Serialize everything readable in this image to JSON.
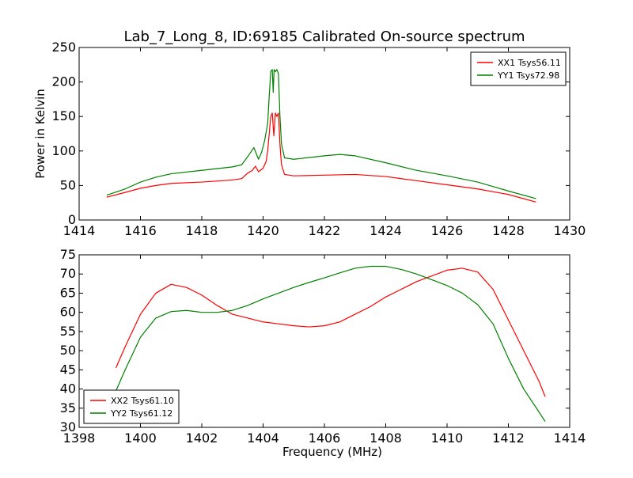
{
  "figure": {
    "title": "Lab_7_Long_8, ID:69185 Calibrated On-source spectrum"
  },
  "chart_data": [
    {
      "type": "line",
      "title": "Lab_7_Long_8, ID:69185 Calibrated On-source spectrum",
      "xlabel": "",
      "ylabel": "Power in Kelvin",
      "xlim": [
        1414,
        1430
      ],
      "ylim": [
        0,
        250
      ],
      "xticks": [
        "1414",
        "1416",
        "1418",
        "1420",
        "1422",
        "1424",
        "1426",
        "1428",
        "1430"
      ],
      "yticks": [
        "0",
        "50",
        "100",
        "150",
        "200",
        "250"
      ],
      "grid": false,
      "legend_position": "top-right",
      "series": [
        {
          "name": "XX1 Tsys56.11",
          "color": "#ff0000",
          "x": [
            1414.9,
            1415.5,
            1416.0,
            1416.5,
            1417.0,
            1418.0,
            1419.0,
            1419.3,
            1419.5,
            1419.65,
            1419.75,
            1419.85,
            1420.0,
            1420.1,
            1420.15,
            1420.2,
            1420.25,
            1420.3,
            1420.35,
            1420.4,
            1420.45,
            1420.5,
            1420.55,
            1420.6,
            1420.7,
            1421.0,
            1422.0,
            1423.0,
            1424.0,
            1425.0,
            1426.0,
            1427.0,
            1428.0,
            1428.9
          ],
          "y": [
            33,
            40,
            46,
            50,
            53,
            55,
            58,
            60,
            68,
            72,
            78,
            70,
            75,
            85,
            100,
            125,
            150,
            155,
            122,
            155,
            150,
            155,
            110,
            80,
            66,
            64,
            65,
            66,
            63,
            57,
            51,
            45,
            37,
            26
          ]
        },
        {
          "name": "YY1 Tsys72.98",
          "color": "#008000",
          "x": [
            1414.9,
            1415.5,
            1416.0,
            1416.5,
            1417.0,
            1418.0,
            1419.0,
            1419.3,
            1419.5,
            1419.7,
            1419.85,
            1419.95,
            1420.05,
            1420.15,
            1420.2,
            1420.25,
            1420.3,
            1420.33,
            1420.36,
            1420.4,
            1420.45,
            1420.5,
            1420.55,
            1420.6,
            1420.7,
            1421.0,
            1422.0,
            1422.5,
            1423.0,
            1424.0,
            1425.0,
            1426.0,
            1427.0,
            1428.0,
            1428.9
          ],
          "y": [
            36,
            45,
            55,
            62,
            67,
            72,
            77,
            80,
            92,
            105,
            88,
            98,
            115,
            140,
            180,
            215,
            218,
            185,
            218,
            215,
            218,
            212,
            150,
            110,
            90,
            88,
            93,
            95,
            93,
            83,
            72,
            64,
            55,
            42,
            31
          ]
        }
      ]
    },
    {
      "type": "line",
      "title": "",
      "xlabel": "Frequency (MHz)",
      "ylabel": "",
      "xlim": [
        1398,
        1414
      ],
      "ylim": [
        30,
        75
      ],
      "xticks": [
        "1398",
        "1400",
        "1402",
        "1404",
        "1406",
        "1408",
        "1410",
        "1412",
        "1414"
      ],
      "yticks": [
        "30",
        "35",
        "40",
        "45",
        "50",
        "55",
        "60",
        "65",
        "70",
        "75"
      ],
      "grid": false,
      "legend_position": "bottom-left",
      "series": [
        {
          "name": "XX2 Tsys61.10",
          "color": "#ff0000",
          "x": [
            1399.2,
            1399.5,
            1400.0,
            1400.5,
            1401.0,
            1401.5,
            1402.0,
            1402.5,
            1403.0,
            1403.5,
            1404.0,
            1404.5,
            1405.0,
            1405.5,
            1406.0,
            1406.5,
            1407.0,
            1407.5,
            1408.0,
            1408.5,
            1409.0,
            1409.5,
            1410.0,
            1410.5,
            1411.0,
            1411.5,
            1412.0,
            1412.5,
            1413.0,
            1413.2
          ],
          "y": [
            45.5,
            51,
            59.5,
            65,
            67.3,
            66.5,
            64.5,
            61.8,
            59.5,
            58.5,
            57.5,
            57,
            56.5,
            56.2,
            56.5,
            57.5,
            59.5,
            61.5,
            64,
            66,
            68,
            69.5,
            71,
            71.5,
            70.5,
            66,
            58,
            50,
            42,
            38
          ]
        },
        {
          "name": "YY2 Tsys61.12",
          "color": "#008000",
          "x": [
            1399.2,
            1399.5,
            1400.0,
            1400.5,
            1401.0,
            1401.5,
            1402.0,
            1402.5,
            1403.0,
            1403.5,
            1404.0,
            1404.5,
            1405.0,
            1405.5,
            1406.0,
            1406.5,
            1407.0,
            1407.5,
            1408.0,
            1408.5,
            1409.0,
            1409.5,
            1410.0,
            1410.5,
            1411.0,
            1411.5,
            1412.0,
            1412.5,
            1413.0,
            1413.2
          ],
          "y": [
            39.5,
            45,
            53.5,
            58.5,
            60.2,
            60.5,
            60,
            60,
            60.5,
            61.8,
            63.5,
            65,
            66.5,
            67.8,
            69,
            70.3,
            71.5,
            72,
            72,
            71.2,
            70,
            68.5,
            67,
            65,
            62,
            57,
            48,
            40,
            34,
            31.5
          ]
        }
      ]
    }
  ]
}
